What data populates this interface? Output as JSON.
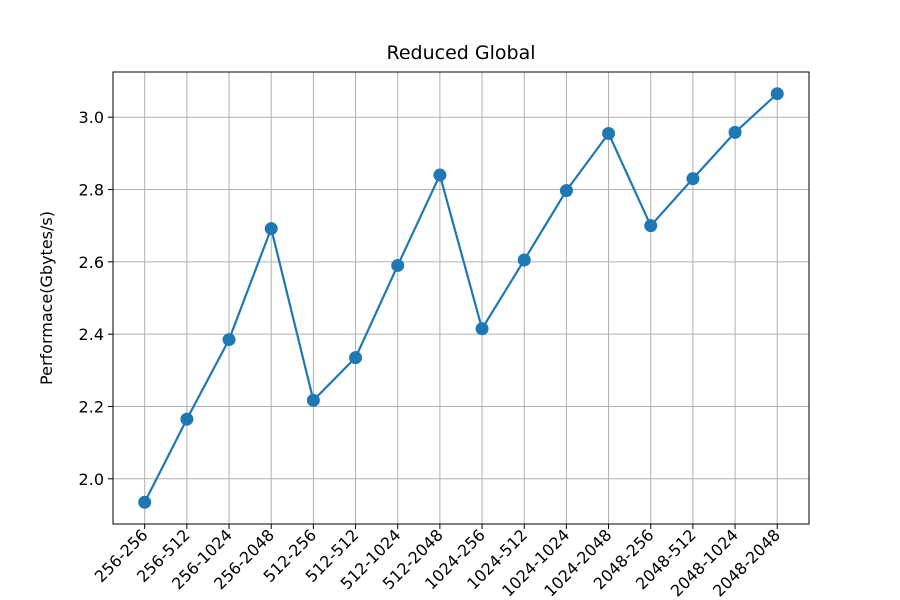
{
  "chart_data": {
    "type": "line",
    "title": "Reduced Global",
    "xlabel": "",
    "ylabel": "Performace(Gbytes/s)",
    "categories": [
      "256-256",
      "256-512",
      "256-1024",
      "256-2048",
      "512-256",
      "512-512",
      "512-1024",
      "512-2048",
      "1024-256",
      "1024-512",
      "1024-1024",
      "1024-2048",
      "2048-256",
      "2048-512",
      "2048-1024",
      "2048-2048"
    ],
    "series": [
      {
        "values": [
          1.935,
          2.165,
          2.385,
          2.692,
          2.217,
          2.335,
          2.59,
          2.84,
          2.415,
          2.605,
          2.797,
          2.955,
          2.7,
          2.83,
          2.958,
          3.065
        ],
        "color": "#1f77b4",
        "marker": "circle"
      }
    ],
    "ylim": [
      1.875,
      3.125
    ],
    "yticks": [
      "2.0",
      "2.2",
      "2.4",
      "2.6",
      "2.8",
      "3.0"
    ],
    "grid": true,
    "xtick_rotation": -45
  }
}
